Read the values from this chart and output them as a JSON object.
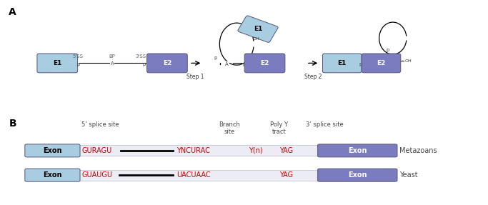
{
  "fig_width": 6.83,
  "fig_height": 2.87,
  "dpi": 100,
  "bg_color": "#ffffff",
  "label_A": "A",
  "label_B": "B",
  "panel_A": {
    "exon1_light_color": "#a8cce0",
    "exon2_dark_color": "#7b7bbf",
    "step1_label": "Step 1",
    "step2_label": "Step 2",
    "label_5SS": "5'SS",
    "label_BP": "BP",
    "label_3SS": "3'SS"
  },
  "panel_B": {
    "exon_light_color": "#a8cce0",
    "exon_dark_color": "#7b7bbf",
    "intron_bg": "#ececf5",
    "red_color": "#cc0000",
    "header_labels": [
      "5’ splice site",
      "Branch\nsite",
      "Poly Y\ntract",
      "3’ splice site"
    ],
    "row1_sequences": [
      "GURAGU",
      "YNCURAC",
      "Y(n)",
      "YAG"
    ],
    "row2_sequences": [
      "GUAUGU",
      "UACUAAC",
      "",
      "YAG"
    ],
    "row1_label": "Metazoans",
    "row2_label": "Yeast",
    "exon_label": "Exon"
  }
}
